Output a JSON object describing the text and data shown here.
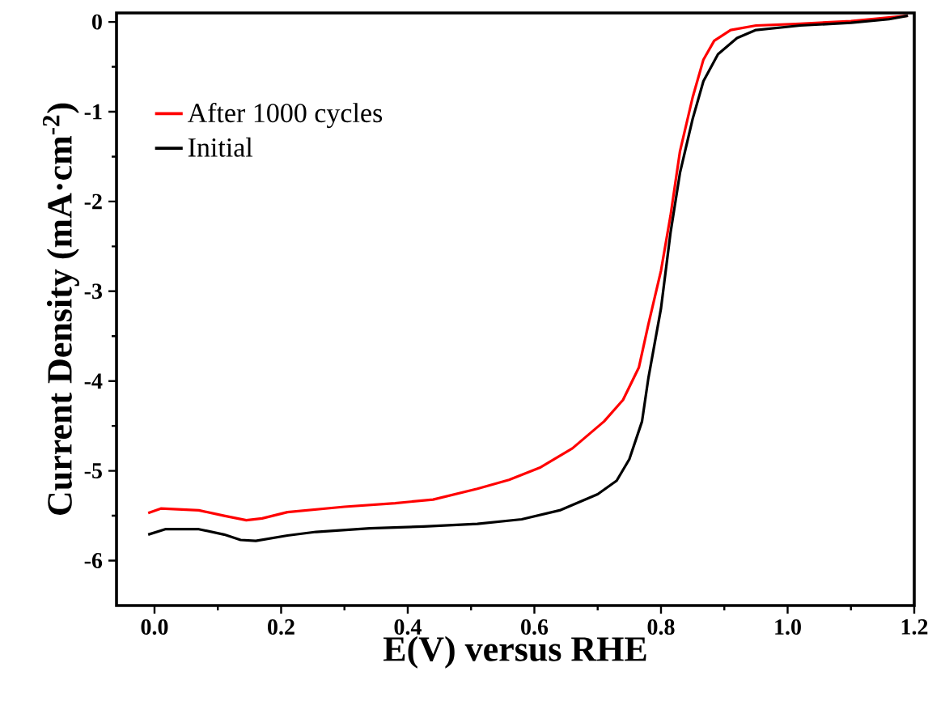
{
  "chart_data": {
    "type": "line",
    "xlabel": "E(V) versus RHE",
    "ylabel": "Current Density (mA·cm$^{-2}$)",
    "xlim": [
      -0.06,
      1.2
    ],
    "ylim": [
      -6.5,
      0.1
    ],
    "xticks": [
      {
        "value": 0,
        "label": "0.0"
      },
      0.2,
      0.4,
      0.6,
      0.8,
      {
        "value": 1,
        "label": "1.0"
      },
      1.2
    ],
    "yticks": [
      {
        "value": 0,
        "label": "0"
      },
      {
        "value": -1,
        "label": "-1"
      },
      {
        "value": -2,
        "label": "-2"
      },
      {
        "value": -3,
        "label": "-3"
      },
      {
        "value": -4,
        "label": "-4"
      },
      {
        "value": -5,
        "label": "-5"
      },
      {
        "value": -6,
        "label": "-6"
      }
    ],
    "legend": "top left",
    "grid": false,
    "marker": "none",
    "line_style": "solid",
    "series": [
      {
        "name": "After 1000 cycles",
        "color": "#ff0000",
        "x": [
          -0.01,
          0.01,
          0.07,
          0.11,
          0.145,
          0.17,
          0.21,
          0.3,
          0.38,
          0.44,
          0.51,
          0.56,
          0.61,
          0.66,
          0.71,
          0.74,
          0.765,
          0.78,
          0.8,
          0.815,
          0.83,
          0.85,
          0.867,
          0.884,
          0.91,
          0.95,
          1.02,
          1.1,
          1.16,
          1.19
        ],
        "values": [
          -5.47,
          -5.42,
          -5.44,
          -5.5,
          -5.55,
          -5.53,
          -5.46,
          -5.4,
          -5.36,
          -5.32,
          -5.2,
          -5.1,
          -4.96,
          -4.75,
          -4.45,
          -4.21,
          -3.85,
          -3.37,
          -2.77,
          -2.16,
          -1.44,
          -0.84,
          -0.42,
          -0.21,
          -0.09,
          -0.04,
          -0.02,
          0.01,
          0.05,
          0.07
        ]
      },
      {
        "name": "Initial",
        "color": "#000000",
        "x": [
          -0.01,
          0.017,
          0.07,
          0.11,
          0.136,
          0.16,
          0.21,
          0.255,
          0.34,
          0.425,
          0.51,
          0.58,
          0.64,
          0.7,
          0.73,
          0.75,
          0.77,
          0.78,
          0.8,
          0.815,
          0.83,
          0.85,
          0.867,
          0.89,
          0.92,
          0.95,
          1.02,
          1.1,
          1.16,
          1.19
        ],
        "values": [
          -5.71,
          -5.65,
          -5.65,
          -5.71,
          -5.77,
          -5.78,
          -5.72,
          -5.68,
          -5.64,
          -5.62,
          -5.59,
          -5.54,
          -5.44,
          -5.26,
          -5.11,
          -4.87,
          -4.45,
          -3.97,
          -3.19,
          -2.35,
          -1.68,
          -1.08,
          -0.66,
          -0.36,
          -0.18,
          -0.09,
          -0.04,
          -0.01,
          0.03,
          0.07
        ]
      }
    ]
  }
}
